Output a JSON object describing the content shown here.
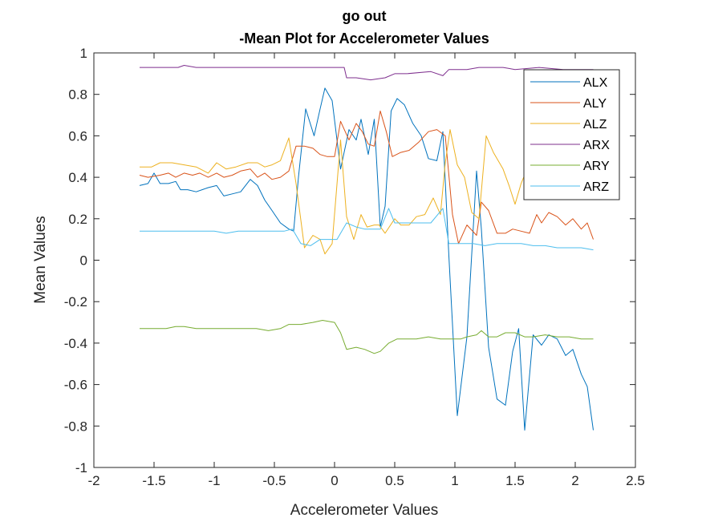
{
  "chart_data": {
    "type": "line",
    "title": [
      "go out",
      "-Mean Plot for Accelerometer Values"
    ],
    "xlabel": "Accelerometer Values",
    "ylabel": "Mean Values",
    "xlim": [
      -2,
      2.5
    ],
    "ylim": [
      -1,
      1
    ],
    "xticks": [
      -2,
      -1.5,
      -1,
      -0.5,
      0,
      0.5,
      1,
      1.5,
      2,
      2.5
    ],
    "xtick_labels": [
      "-2",
      "-1.5",
      "-1",
      "-0.5",
      "0",
      "0.5",
      "1",
      "1.5",
      "2",
      "2.5"
    ],
    "yticks": [
      -1,
      -0.8,
      -0.6,
      -0.4,
      -0.2,
      0,
      0.2,
      0.4,
      0.6,
      0.8,
      1
    ],
    "ytick_labels": [
      "-1",
      "-0.8",
      "-0.6",
      "-0.4",
      "-0.2",
      "0",
      "0.2",
      "0.4",
      "0.6",
      "0.8",
      "1"
    ],
    "grid": false,
    "legend_position": "top-right",
    "series": [
      {
        "name": "ALX",
        "color": "#0072BD",
        "points": [
          [
            -1.62,
            0.36
          ],
          [
            -1.55,
            0.37
          ],
          [
            -1.5,
            0.42
          ],
          [
            -1.45,
            0.37
          ],
          [
            -1.38,
            0.37
          ],
          [
            -1.32,
            0.38
          ],
          [
            -1.28,
            0.34
          ],
          [
            -1.22,
            0.34
          ],
          [
            -1.15,
            0.33
          ],
          [
            -1.05,
            0.35
          ],
          [
            -0.98,
            0.36
          ],
          [
            -0.92,
            0.31
          ],
          [
            -0.85,
            0.32
          ],
          [
            -0.78,
            0.33
          ],
          [
            -0.7,
            0.39
          ],
          [
            -0.64,
            0.36
          ],
          [
            -0.58,
            0.29
          ],
          [
            -0.52,
            0.24
          ],
          [
            -0.45,
            0.18
          ],
          [
            -0.38,
            0.15
          ],
          [
            -0.34,
            0.14
          ],
          [
            -0.3,
            0.4
          ],
          [
            -0.24,
            0.73
          ],
          [
            -0.17,
            0.6
          ],
          [
            -0.12,
            0.73
          ],
          [
            -0.08,
            0.83
          ],
          [
            -0.02,
            0.77
          ],
          [
            0.05,
            0.44
          ],
          [
            0.12,
            0.63
          ],
          [
            0.18,
            0.58
          ],
          [
            0.22,
            0.68
          ],
          [
            0.28,
            0.51
          ],
          [
            0.33,
            0.68
          ],
          [
            0.38,
            0.16
          ],
          [
            0.42,
            0.26
          ],
          [
            0.47,
            0.72
          ],
          [
            0.52,
            0.78
          ],
          [
            0.58,
            0.75
          ],
          [
            0.65,
            0.66
          ],
          [
            0.72,
            0.6
          ],
          [
            0.78,
            0.49
          ],
          [
            0.85,
            0.48
          ],
          [
            0.9,
            0.62
          ],
          [
            0.95,
            0.02
          ],
          [
            1.02,
            -0.75
          ],
          [
            1.1,
            -0.37
          ],
          [
            1.18,
            0.43
          ],
          [
            1.22,
            0.15
          ],
          [
            1.28,
            -0.42
          ],
          [
            1.35,
            -0.67
          ],
          [
            1.42,
            -0.7
          ],
          [
            1.48,
            -0.44
          ],
          [
            1.53,
            -0.33
          ],
          [
            1.58,
            -0.82
          ],
          [
            1.65,
            -0.36
          ],
          [
            1.72,
            -0.41
          ],
          [
            1.78,
            -0.36
          ],
          [
            1.85,
            -0.38
          ],
          [
            1.92,
            -0.46
          ],
          [
            1.98,
            -0.43
          ],
          [
            2.05,
            -0.55
          ],
          [
            2.1,
            -0.61
          ],
          [
            2.15,
            -0.82
          ]
        ]
      },
      {
        "name": "ALY",
        "color": "#D95319",
        "points": [
          [
            -1.62,
            0.41
          ],
          [
            -1.55,
            0.4
          ],
          [
            -1.45,
            0.41
          ],
          [
            -1.38,
            0.42
          ],
          [
            -1.32,
            0.4
          ],
          [
            -1.25,
            0.42
          ],
          [
            -1.18,
            0.41
          ],
          [
            -1.12,
            0.42
          ],
          [
            -1.05,
            0.4
          ],
          [
            -0.98,
            0.42
          ],
          [
            -0.92,
            0.4
          ],
          [
            -0.85,
            0.41
          ],
          [
            -0.78,
            0.43
          ],
          [
            -0.7,
            0.44
          ],
          [
            -0.64,
            0.4
          ],
          [
            -0.58,
            0.42
          ],
          [
            -0.52,
            0.39
          ],
          [
            -0.45,
            0.4
          ],
          [
            -0.38,
            0.43
          ],
          [
            -0.32,
            0.55
          ],
          [
            -0.25,
            0.55
          ],
          [
            -0.18,
            0.54
          ],
          [
            -0.12,
            0.51
          ],
          [
            -0.06,
            0.5
          ],
          [
            0.0,
            0.5
          ],
          [
            0.05,
            0.67
          ],
          [
            0.12,
            0.58
          ],
          [
            0.18,
            0.66
          ],
          [
            0.23,
            0.62
          ],
          [
            0.28,
            0.56
          ],
          [
            0.33,
            0.55
          ],
          [
            0.38,
            0.72
          ],
          [
            0.43,
            0.62
          ],
          [
            0.48,
            0.5
          ],
          [
            0.55,
            0.52
          ],
          [
            0.62,
            0.53
          ],
          [
            0.7,
            0.57
          ],
          [
            0.78,
            0.62
          ],
          [
            0.85,
            0.63
          ],
          [
            0.92,
            0.6
          ],
          [
            0.98,
            0.22
          ],
          [
            1.03,
            0.08
          ],
          [
            1.1,
            0.17
          ],
          [
            1.18,
            0.12
          ],
          [
            1.22,
            0.28
          ],
          [
            1.28,
            0.24
          ],
          [
            1.35,
            0.13
          ],
          [
            1.42,
            0.13
          ],
          [
            1.48,
            0.15
          ],
          [
            1.55,
            0.14
          ],
          [
            1.62,
            0.13
          ],
          [
            1.68,
            0.22
          ],
          [
            1.72,
            0.18
          ],
          [
            1.78,
            0.23
          ],
          [
            1.85,
            0.21
          ],
          [
            1.92,
            0.17
          ],
          [
            1.98,
            0.2
          ],
          [
            2.05,
            0.15
          ],
          [
            2.1,
            0.18
          ],
          [
            2.15,
            0.1
          ]
        ]
      },
      {
        "name": "ALZ",
        "color": "#EDB120",
        "points": [
          [
            -1.62,
            0.45
          ],
          [
            -1.52,
            0.45
          ],
          [
            -1.45,
            0.47
          ],
          [
            -1.35,
            0.47
          ],
          [
            -1.25,
            0.46
          ],
          [
            -1.15,
            0.45
          ],
          [
            -1.05,
            0.42
          ],
          [
            -0.98,
            0.47
          ],
          [
            -0.9,
            0.44
          ],
          [
            -0.82,
            0.45
          ],
          [
            -0.72,
            0.47
          ],
          [
            -0.64,
            0.47
          ],
          [
            -0.58,
            0.45
          ],
          [
            -0.52,
            0.46
          ],
          [
            -0.45,
            0.48
          ],
          [
            -0.38,
            0.59
          ],
          [
            -0.32,
            0.37
          ],
          [
            -0.25,
            0.06
          ],
          [
            -0.18,
            0.12
          ],
          [
            -0.12,
            0.1
          ],
          [
            -0.08,
            0.03
          ],
          [
            -0.02,
            0.08
          ],
          [
            0.05,
            0.58
          ],
          [
            0.1,
            0.21
          ],
          [
            0.16,
            0.1
          ],
          [
            0.22,
            0.22
          ],
          [
            0.27,
            0.16
          ],
          [
            0.33,
            0.17
          ],
          [
            0.37,
            0.17
          ],
          [
            0.42,
            0.13
          ],
          [
            0.5,
            0.2
          ],
          [
            0.55,
            0.17
          ],
          [
            0.62,
            0.17
          ],
          [
            0.68,
            0.21
          ],
          [
            0.75,
            0.22
          ],
          [
            0.82,
            0.3
          ],
          [
            0.88,
            0.22
          ],
          [
            0.92,
            0.47
          ],
          [
            0.96,
            0.63
          ],
          [
            1.02,
            0.46
          ],
          [
            1.08,
            0.4
          ],
          [
            1.14,
            0.23
          ],
          [
            1.2,
            0.2
          ],
          [
            1.26,
            0.6
          ],
          [
            1.32,
            0.52
          ],
          [
            1.4,
            0.44
          ],
          [
            1.45,
            0.36
          ],
          [
            1.5,
            0.27
          ],
          [
            1.55,
            0.37
          ],
          [
            1.6,
            0.44
          ],
          [
            1.65,
            0.42
          ]
        ]
      },
      {
        "name": "ARX",
        "color": "#7E2F8E",
        "points": [
          [
            -1.62,
            0.93
          ],
          [
            -1.45,
            0.93
          ],
          [
            -1.3,
            0.93
          ],
          [
            -1.25,
            0.94
          ],
          [
            -1.15,
            0.93
          ],
          [
            -0.9,
            0.93
          ],
          [
            -0.8,
            0.93
          ],
          [
            -0.6,
            0.93
          ],
          [
            -0.5,
            0.93
          ],
          [
            -0.35,
            0.93
          ],
          [
            -0.2,
            0.93
          ],
          [
            0.0,
            0.93
          ],
          [
            0.08,
            0.93
          ],
          [
            0.1,
            0.88
          ],
          [
            0.18,
            0.88
          ],
          [
            0.3,
            0.87
          ],
          [
            0.42,
            0.88
          ],
          [
            0.5,
            0.9
          ],
          [
            0.6,
            0.9
          ],
          [
            0.8,
            0.91
          ],
          [
            0.9,
            0.89
          ],
          [
            0.95,
            0.92
          ],
          [
            1.1,
            0.92
          ],
          [
            1.2,
            0.93
          ],
          [
            1.3,
            0.93
          ],
          [
            1.4,
            0.93
          ],
          [
            1.5,
            0.92
          ],
          [
            1.7,
            0.93
          ],
          [
            1.9,
            0.92
          ],
          [
            2.15,
            0.92
          ]
        ]
      },
      {
        "name": "ARY",
        "color": "#77AC30",
        "points": [
          [
            -1.62,
            -0.33
          ],
          [
            -1.5,
            -0.33
          ],
          [
            -1.4,
            -0.33
          ],
          [
            -1.32,
            -0.32
          ],
          [
            -1.25,
            -0.32
          ],
          [
            -1.15,
            -0.33
          ],
          [
            -1.05,
            -0.33
          ],
          [
            -0.95,
            -0.33
          ],
          [
            -0.85,
            -0.33
          ],
          [
            -0.75,
            -0.33
          ],
          [
            -0.65,
            -0.33
          ],
          [
            -0.55,
            -0.34
          ],
          [
            -0.45,
            -0.33
          ],
          [
            -0.38,
            -0.31
          ],
          [
            -0.28,
            -0.31
          ],
          [
            -0.18,
            -0.3
          ],
          [
            -0.1,
            -0.29
          ],
          [
            0.0,
            -0.3
          ],
          [
            0.05,
            -0.35
          ],
          [
            0.1,
            -0.43
          ],
          [
            0.18,
            -0.42
          ],
          [
            0.25,
            -0.43
          ],
          [
            0.33,
            -0.45
          ],
          [
            0.38,
            -0.44
          ],
          [
            0.45,
            -0.4
          ],
          [
            0.52,
            -0.38
          ],
          [
            0.6,
            -0.38
          ],
          [
            0.68,
            -0.38
          ],
          [
            0.78,
            -0.37
          ],
          [
            0.88,
            -0.38
          ],
          [
            0.98,
            -0.38
          ],
          [
            1.05,
            -0.38
          ],
          [
            1.1,
            -0.37
          ],
          [
            1.18,
            -0.36
          ],
          [
            1.22,
            -0.34
          ],
          [
            1.28,
            -0.37
          ],
          [
            1.35,
            -0.37
          ],
          [
            1.42,
            -0.35
          ],
          [
            1.5,
            -0.35
          ],
          [
            1.58,
            -0.37
          ],
          [
            1.65,
            -0.37
          ],
          [
            1.75,
            -0.36
          ],
          [
            1.85,
            -0.37
          ],
          [
            1.95,
            -0.37
          ],
          [
            2.05,
            -0.38
          ],
          [
            2.15,
            -0.38
          ]
        ]
      },
      {
        "name": "ARZ",
        "color": "#4DBEEE",
        "points": [
          [
            -1.62,
            0.14
          ],
          [
            -1.5,
            0.14
          ],
          [
            -1.4,
            0.14
          ],
          [
            -1.3,
            0.14
          ],
          [
            -1.2,
            0.14
          ],
          [
            -1.1,
            0.14
          ],
          [
            -1.0,
            0.14
          ],
          [
            -0.9,
            0.13
          ],
          [
            -0.8,
            0.14
          ],
          [
            -0.7,
            0.14
          ],
          [
            -0.6,
            0.14
          ],
          [
            -0.5,
            0.14
          ],
          [
            -0.42,
            0.14
          ],
          [
            -0.35,
            0.15
          ],
          [
            -0.28,
            0.08
          ],
          [
            -0.2,
            0.07
          ],
          [
            -0.12,
            0.1
          ],
          [
            -0.05,
            0.1
          ],
          [
            0.02,
            0.1
          ],
          [
            0.1,
            0.18
          ],
          [
            0.18,
            0.16
          ],
          [
            0.25,
            0.15
          ],
          [
            0.32,
            0.15
          ],
          [
            0.38,
            0.15
          ],
          [
            0.45,
            0.25
          ],
          [
            0.5,
            0.18
          ],
          [
            0.6,
            0.18
          ],
          [
            0.7,
            0.18
          ],
          [
            0.8,
            0.18
          ],
          [
            0.9,
            0.25
          ],
          [
            0.95,
            0.08
          ],
          [
            1.05,
            0.08
          ],
          [
            1.15,
            0.08
          ],
          [
            1.25,
            0.07
          ],
          [
            1.35,
            0.08
          ],
          [
            1.45,
            0.08
          ],
          [
            1.55,
            0.08
          ],
          [
            1.65,
            0.07
          ],
          [
            1.75,
            0.07
          ],
          [
            1.85,
            0.06
          ],
          [
            1.95,
            0.06
          ],
          [
            2.05,
            0.06
          ],
          [
            2.15,
            0.05
          ]
        ]
      }
    ]
  }
}
